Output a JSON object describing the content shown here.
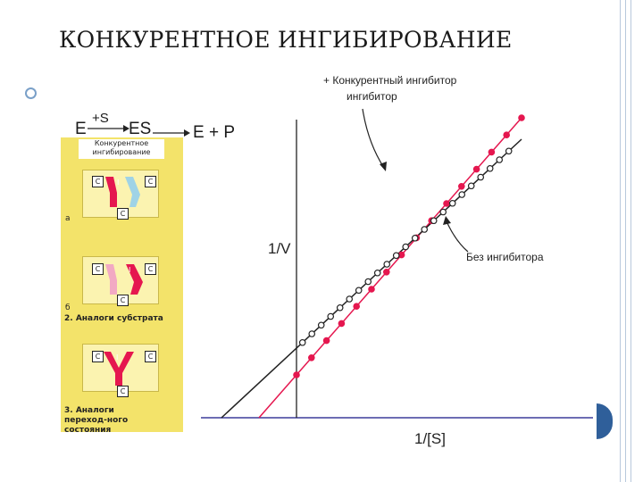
{
  "slide": {
    "title": "КОНКУРЕНТНОЕ ИНГИБИРОВАНИЕ",
    "colors": {
      "accent": "#2f5f9a",
      "frame": "#b8c8dc",
      "bullet": "#7aa0c8"
    }
  },
  "scheme": {
    "enzyme": "E",
    "substrate_label": "+S",
    "complex": "ES",
    "products": "E + P"
  },
  "panel": {
    "caption": "Конкурентное ингибирование",
    "letter_a": "а",
    "letter_b": "б",
    "label_2": "2. Аналоги субстрата",
    "label_3": "3. Аналоги переход-ного состояния",
    "site_c": "C",
    "inhibitor_i": "I",
    "colors": {
      "background": "#f3e36a",
      "inhibitor": "#e5174f",
      "substrate": "#9fd3e6",
      "pale": "#f2a9c3"
    }
  },
  "chart_data": {
    "type": "line",
    "xlabel": "1/[S]",
    "ylabel": "1/V",
    "series": [
      {
        "name": "+ Конкурентный ингибитор",
        "marker": "filled",
        "color": "#e5174f",
        "x": [
          -0.5,
          3.0
        ],
        "y": [
          0.0,
          7.0
        ]
      },
      {
        "name": "Без ингибитора",
        "marker": "open",
        "color": "#222222",
        "x": [
          -1.0,
          3.0
        ],
        "y": [
          0.0,
          6.5
        ]
      }
    ],
    "legend": [
      "+ Конкурентный ингибитор",
      "Без ингибитора"
    ],
    "grid": false
  }
}
